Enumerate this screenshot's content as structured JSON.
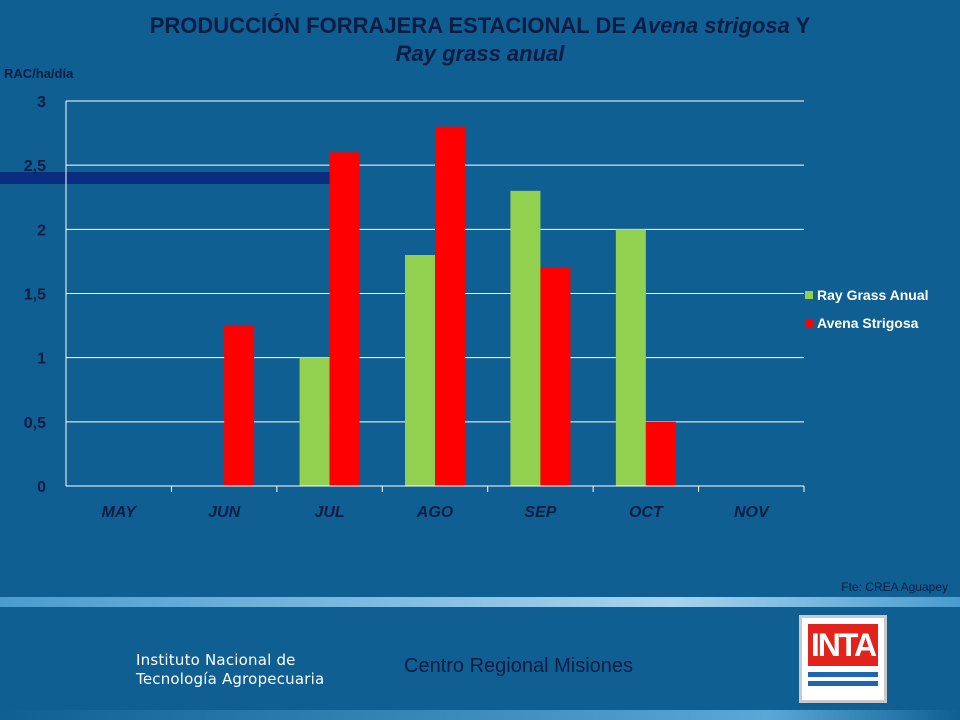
{
  "title": {
    "line1_prefix": "PRODUCCIÓN FORRAJERA ESTACIONAL DE ",
    "line1_italic": "Avena strigosa",
    "line1_suffix": " Y",
    "line2_italic": "Ray grass anual"
  },
  "source": "Fte: CREA Aguapey",
  "footer": {
    "institution_line1": "Instituto Nacional de",
    "institution_line2": "Tecnología Agropecuaria",
    "centro": "Centro Regional Misiones",
    "logo_text": "INTA"
  },
  "colors": {
    "background": "#0f5f93",
    "ray_grass": "#92d050",
    "avena": "#ff0000",
    "text_dark": "#0b1d45"
  },
  "chart_data": {
    "type": "bar",
    "title": "PRODUCCIÓN FORRAJERA ESTACIONAL DE Avena strigosa Y Ray grass anual",
    "ylabel": "RAC/ha/día",
    "xlabel": "",
    "categories": [
      "MAY",
      "JUN",
      "JUL",
      "AGO",
      "SEP",
      "OCT",
      "NOV"
    ],
    "series": [
      {
        "name": "Ray Grass Anual",
        "color": "#92d050",
        "values": [
          0,
          0,
          1,
          1.8,
          2.3,
          2,
          0
        ]
      },
      {
        "name": "Avena Strigosa",
        "color": "#ff0000",
        "values": [
          0,
          1.25,
          2.6,
          2.8,
          1.7,
          0.5,
          0
        ]
      }
    ],
    "ylim": [
      0,
      3
    ],
    "yticks": [
      0,
      0.5,
      1,
      1.5,
      2,
      2.5,
      3
    ],
    "ytick_labels": [
      "0",
      "0,5",
      "1",
      "1,5",
      "2",
      "2,5",
      "3"
    ],
    "grid": true,
    "legend_position": "right"
  }
}
